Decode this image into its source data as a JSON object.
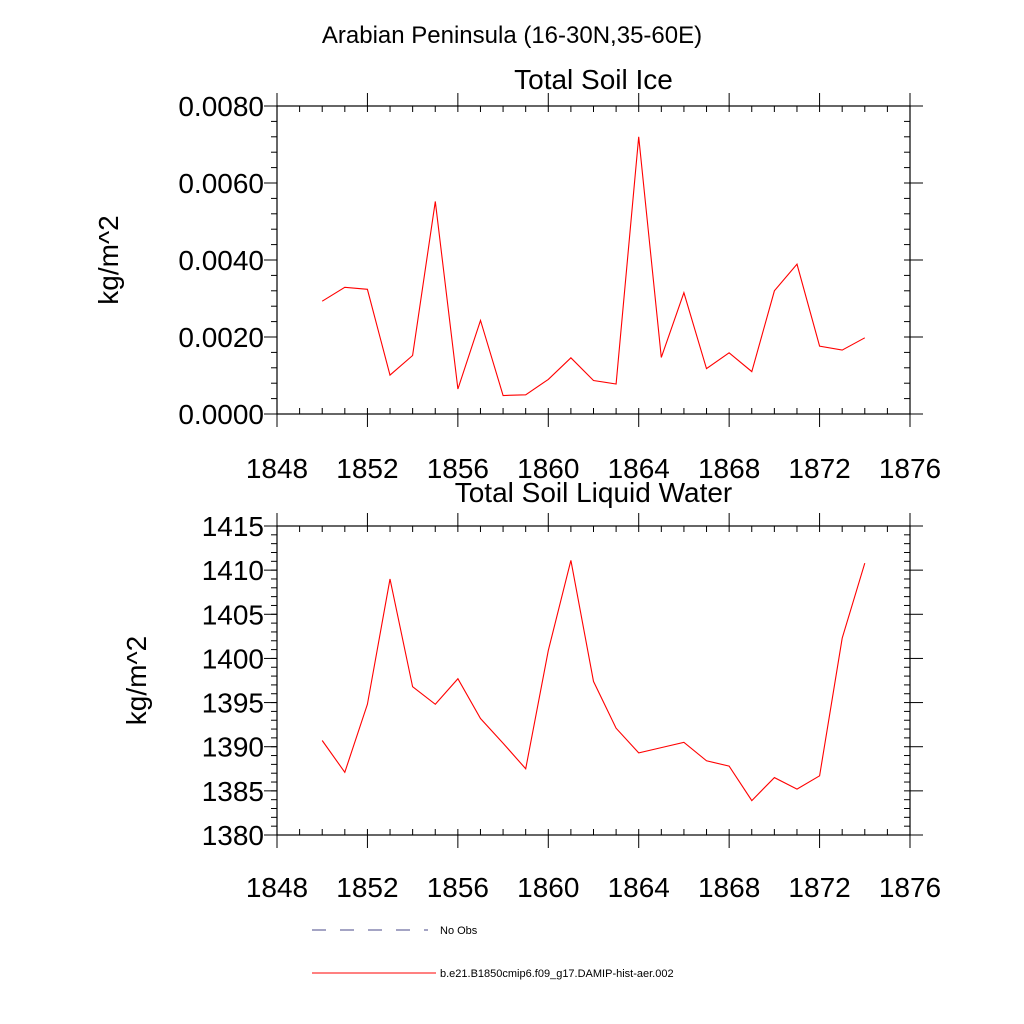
{
  "figure": {
    "suptitle": "Arabian Peninsula (16-30N,35-60E)"
  },
  "colors": {
    "model_line": "#ff0000",
    "obs_line": "#4a4a8a",
    "axes": "#000000"
  },
  "legend": {
    "placement": "bottom-left below plots",
    "entries": [
      {
        "label": "No Obs",
        "style": "dashed",
        "color": "#4a4a8a"
      },
      {
        "label": "b.e21.B1850cmip6.f09_g17.DAMIP-hist-aer.002",
        "style": "solid",
        "color": "#ff0000"
      }
    ]
  },
  "chart_data": [
    {
      "type": "line",
      "title": "Total Soil Ice",
      "xlabel": "",
      "ylabel": "kg/m^2",
      "xlim": [
        1848,
        1876
      ],
      "ylim": [
        0,
        0.008
      ],
      "xticks": [
        1848,
        1852,
        1856,
        1860,
        1864,
        1868,
        1872,
        1876
      ],
      "xtick_labels": [
        "1848",
        "1852",
        "1856",
        "1860",
        "1864",
        "1868",
        "1872",
        "1876"
      ],
      "yticks": [
        0,
        0.002,
        0.004,
        0.006,
        0.008
      ],
      "ytick_labels": [
        "0.0000",
        "0.0020",
        "0.0040",
        "0.0060",
        "0.0080"
      ],
      "y_minor_step": 0.0004,
      "x_minor_step": 1,
      "grid": false,
      "x": [
        1850,
        1851,
        1852,
        1853,
        1854,
        1855,
        1856,
        1857,
        1858,
        1859,
        1860,
        1861,
        1862,
        1863,
        1864,
        1865,
        1866,
        1867,
        1868,
        1869,
        1870,
        1871,
        1872,
        1873,
        1874
      ],
      "series": [
        {
          "name": "b.e21.B1850cmip6.f09_g17.DAMIP-hist-aer.002",
          "color": "#ff0000",
          "values": [
            0.00293,
            0.00329,
            0.00324,
            0.00101,
            0.00152,
            0.00552,
            0.00065,
            0.00243,
            0.00048,
            0.0005,
            0.0009,
            0.00146,
            0.00087,
            0.00078,
            0.0072,
            0.00147,
            0.00315,
            0.00118,
            0.00159,
            0.0011,
            0.0032,
            0.00389,
            0.00176,
            0.00166,
            0.00198
          ]
        }
      ]
    },
    {
      "type": "line",
      "title": "Total Soil Liquid Water",
      "xlabel": "",
      "ylabel": "kg/m^2",
      "xlim": [
        1848,
        1876
      ],
      "ylim": [
        1380,
        1415
      ],
      "xticks": [
        1848,
        1852,
        1856,
        1860,
        1864,
        1868,
        1872,
        1876
      ],
      "xtick_labels": [
        "1848",
        "1852",
        "1856",
        "1860",
        "1864",
        "1868",
        "1872",
        "1876"
      ],
      "yticks": [
        1380,
        1385,
        1390,
        1395,
        1400,
        1405,
        1410,
        1415
      ],
      "ytick_labels": [
        "1380",
        "1385",
        "1390",
        "1395",
        "1400",
        "1405",
        "1410",
        "1415"
      ],
      "y_minor_step": 1,
      "x_minor_step": 1,
      "grid": false,
      "x": [
        1850,
        1851,
        1852,
        1853,
        1854,
        1855,
        1856,
        1857,
        1858,
        1859,
        1860,
        1861,
        1862,
        1863,
        1864,
        1865,
        1866,
        1867,
        1868,
        1869,
        1870,
        1871,
        1872,
        1873,
        1874
      ],
      "series": [
        {
          "name": "b.e21.B1850cmip6.f09_g17.DAMIP-hist-aer.002",
          "color": "#ff0000",
          "values": [
            1390.7,
            1387.1,
            1394.8,
            1409.0,
            1396.8,
            1394.8,
            1397.7,
            1393.2,
            1390.4,
            1387.5,
            1400.9,
            1411.1,
            1397.4,
            1392.1,
            1389.3,
            1389.9,
            1390.5,
            1388.4,
            1387.8,
            1383.9,
            1386.5,
            1385.2,
            1386.7,
            1402.3,
            1410.8
          ]
        }
      ]
    }
  ]
}
